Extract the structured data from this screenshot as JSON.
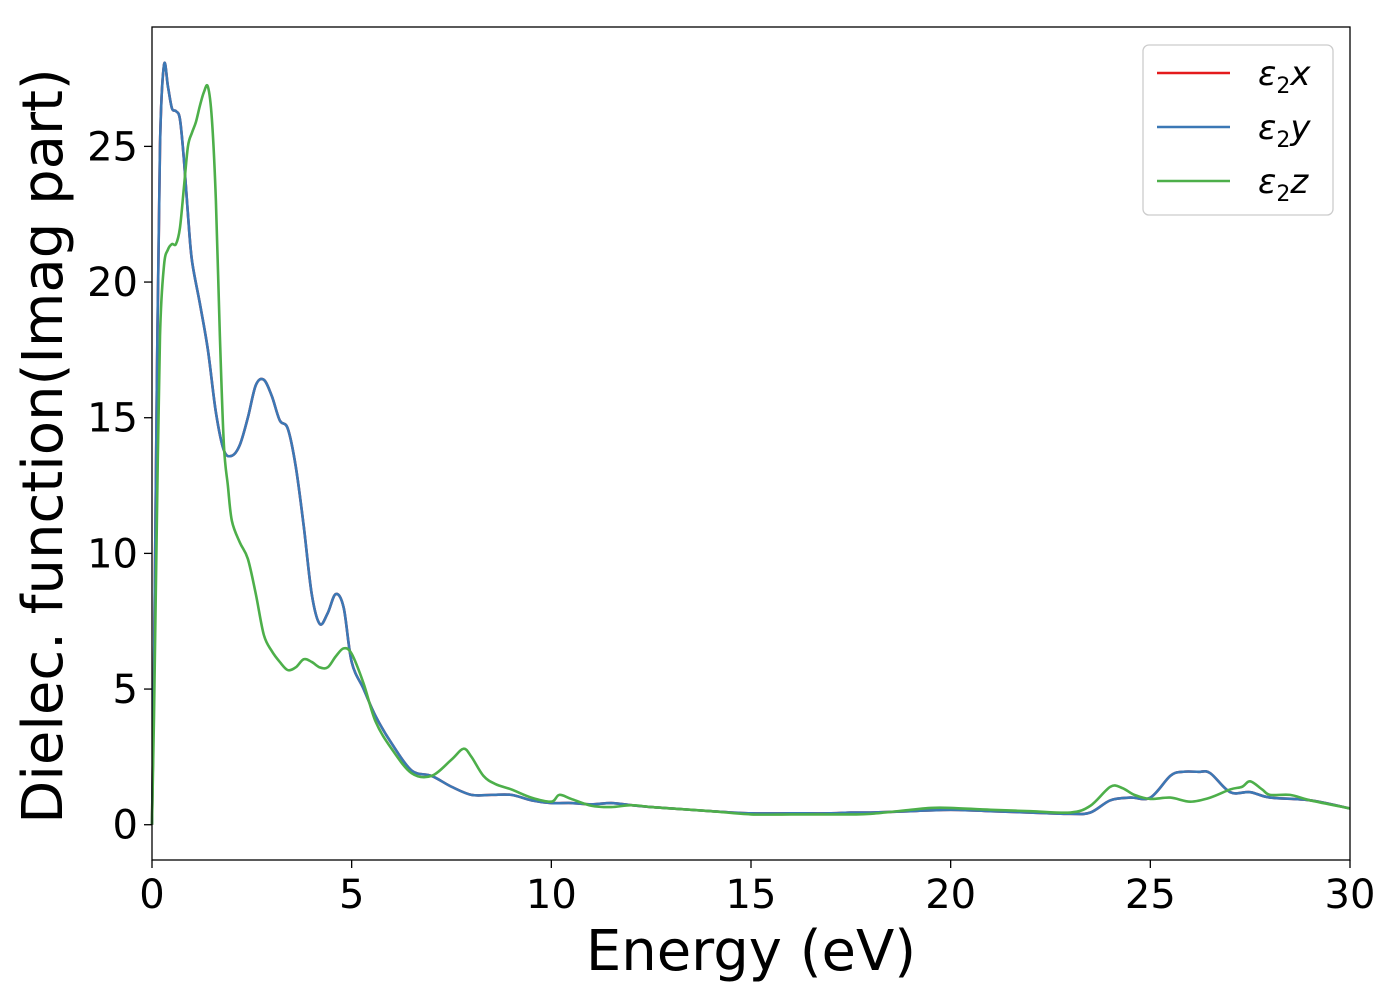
{
  "chart_data": {
    "type": "line",
    "title": "",
    "xlabel": "Energy (eV)",
    "ylabel": "Dielec. function(Imag part)",
    "xlim": [
      0,
      30
    ],
    "ylim": [
      -1.3,
      29.4
    ],
    "xticks": [
      0,
      5,
      10,
      15,
      20,
      25,
      30
    ],
    "yticks": [
      0,
      5,
      10,
      15,
      20,
      25
    ],
    "grid": false,
    "legend_position": "top-right",
    "series": [
      {
        "name": "ε2x",
        "legend_base": "ε",
        "legend_sub": "2",
        "legend_var": "x",
        "color": "#e41a1c",
        "x": [
          0,
          0.05,
          0.12,
          0.2,
          0.3,
          0.4,
          0.5,
          0.6,
          0.7,
          0.8,
          0.9,
          1.0,
          1.2,
          1.4,
          1.6,
          1.8,
          2.0,
          2.2,
          2.4,
          2.6,
          2.8,
          3.0,
          3.2,
          3.4,
          3.6,
          3.8,
          4.0,
          4.2,
          4.4,
          4.6,
          4.8,
          5.0,
          5.3,
          5.6,
          6.0,
          6.5,
          7.0,
          7.5,
          8.0,
          8.5,
          9.0,
          9.5,
          10.0,
          10.5,
          11.0,
          11.5,
          12.0,
          12.5,
          13.0,
          14.0,
          15.0,
          16.0,
          17.0,
          17.5,
          18.0,
          19.0,
          20.0,
          21.0,
          22.0,
          23.0,
          23.5,
          24.0,
          24.5,
          25.0,
          25.5,
          25.8,
          26.2,
          26.5,
          27.0,
          27.5,
          28.0,
          29.0,
          30.0
        ],
        "values": [
          0,
          5.5,
          16,
          25,
          28.0,
          27.2,
          26.4,
          26.3,
          26.0,
          24.5,
          22.5,
          20.8,
          19.2,
          17.5,
          15.2,
          13.8,
          13.6,
          14.0,
          15.0,
          16.2,
          16.4,
          15.8,
          14.9,
          14.6,
          13.2,
          11.0,
          8.5,
          7.4,
          7.8,
          8.5,
          8.0,
          6.0,
          5.0,
          4.0,
          3.0,
          2.0,
          1.8,
          1.4,
          1.1,
          1.1,
          1.1,
          0.9,
          0.8,
          0.8,
          0.75,
          0.8,
          0.72,
          0.65,
          0.6,
          0.5,
          0.42,
          0.42,
          0.42,
          0.45,
          0.45,
          0.5,
          0.55,
          0.5,
          0.45,
          0.4,
          0.45,
          0.9,
          1.0,
          1.0,
          1.8,
          1.95,
          1.95,
          1.9,
          1.2,
          1.2,
          1.0,
          0.9,
          0.6
        ]
      },
      {
        "name": "ε2y",
        "legend_base": "ε",
        "legend_sub": "2",
        "legend_var": "y",
        "color": "#3b78b5",
        "x": [
          0,
          0.05,
          0.12,
          0.2,
          0.3,
          0.4,
          0.5,
          0.6,
          0.7,
          0.8,
          0.9,
          1.0,
          1.2,
          1.4,
          1.6,
          1.8,
          2.0,
          2.2,
          2.4,
          2.6,
          2.8,
          3.0,
          3.2,
          3.4,
          3.6,
          3.8,
          4.0,
          4.2,
          4.4,
          4.6,
          4.8,
          5.0,
          5.3,
          5.6,
          6.0,
          6.5,
          7.0,
          7.5,
          8.0,
          8.5,
          9.0,
          9.5,
          10.0,
          10.5,
          11.0,
          11.5,
          12.0,
          12.5,
          13.0,
          14.0,
          15.0,
          16.0,
          17.0,
          17.5,
          18.0,
          19.0,
          20.0,
          21.0,
          22.0,
          23.0,
          23.5,
          24.0,
          24.5,
          25.0,
          25.5,
          25.8,
          26.2,
          26.5,
          27.0,
          27.5,
          28.0,
          29.0,
          30.0
        ],
        "values": [
          0,
          5.5,
          16,
          25,
          28.0,
          27.2,
          26.4,
          26.3,
          26.0,
          24.5,
          22.5,
          20.8,
          19.2,
          17.5,
          15.2,
          13.8,
          13.6,
          14.0,
          15.0,
          16.2,
          16.4,
          15.8,
          14.9,
          14.6,
          13.2,
          11.0,
          8.5,
          7.4,
          7.8,
          8.5,
          8.0,
          6.0,
          5.0,
          4.0,
          3.0,
          2.0,
          1.8,
          1.4,
          1.1,
          1.1,
          1.1,
          0.9,
          0.8,
          0.8,
          0.75,
          0.8,
          0.72,
          0.65,
          0.6,
          0.5,
          0.42,
          0.42,
          0.42,
          0.45,
          0.45,
          0.5,
          0.55,
          0.5,
          0.45,
          0.4,
          0.45,
          0.9,
          1.0,
          1.0,
          1.8,
          1.95,
          1.95,
          1.9,
          1.2,
          1.2,
          1.0,
          0.9,
          0.6
        ]
      },
      {
        "name": "ε2z",
        "legend_base": "ε",
        "legend_sub": "2",
        "legend_var": "z",
        "color": "#4daf4a",
        "x": [
          0,
          0.05,
          0.12,
          0.2,
          0.3,
          0.4,
          0.5,
          0.6,
          0.7,
          0.8,
          0.9,
          1.0,
          1.1,
          1.2,
          1.3,
          1.4,
          1.5,
          1.6,
          1.7,
          1.8,
          1.9,
          2.0,
          2.2,
          2.4,
          2.6,
          2.8,
          3.0,
          3.2,
          3.4,
          3.6,
          3.8,
          4.0,
          4.2,
          4.4,
          4.6,
          4.8,
          5.0,
          5.3,
          5.6,
          6.0,
          6.5,
          7.0,
          7.5,
          7.8,
          8.0,
          8.3,
          8.6,
          9.0,
          9.5,
          10.0,
          10.2,
          10.5,
          11.0,
          11.5,
          12.0,
          12.5,
          13.0,
          14.0,
          15.0,
          16.0,
          17.0,
          17.5,
          18.0,
          19.0,
          19.5,
          20.0,
          21.0,
          22.0,
          23.0,
          23.5,
          24.0,
          24.3,
          24.6,
          25.0,
          25.5,
          26.0,
          26.5,
          27.0,
          27.3,
          27.5,
          27.8,
          28.0,
          28.5,
          29.0,
          30.0
        ],
        "values": [
          0,
          4,
          11,
          18,
          20.6,
          21.2,
          21.4,
          21.4,
          22.0,
          23.5,
          25.0,
          25.5,
          25.9,
          26.5,
          27.0,
          27.2,
          26.0,
          23.0,
          18.0,
          14.0,
          12.5,
          11.2,
          10.4,
          9.8,
          8.5,
          7.0,
          6.4,
          6.0,
          5.7,
          5.8,
          6.1,
          6.0,
          5.8,
          5.8,
          6.2,
          6.5,
          6.3,
          5.2,
          3.8,
          2.8,
          1.9,
          1.8,
          2.4,
          2.8,
          2.5,
          1.8,
          1.5,
          1.3,
          1.0,
          0.85,
          1.1,
          0.95,
          0.7,
          0.65,
          0.72,
          0.65,
          0.6,
          0.5,
          0.38,
          0.38,
          0.38,
          0.38,
          0.4,
          0.55,
          0.62,
          0.62,
          0.55,
          0.5,
          0.45,
          0.7,
          1.4,
          1.35,
          1.1,
          0.95,
          1.0,
          0.85,
          1.0,
          1.3,
          1.4,
          1.6,
          1.3,
          1.1,
          1.1,
          0.9,
          0.6
        ]
      }
    ]
  }
}
